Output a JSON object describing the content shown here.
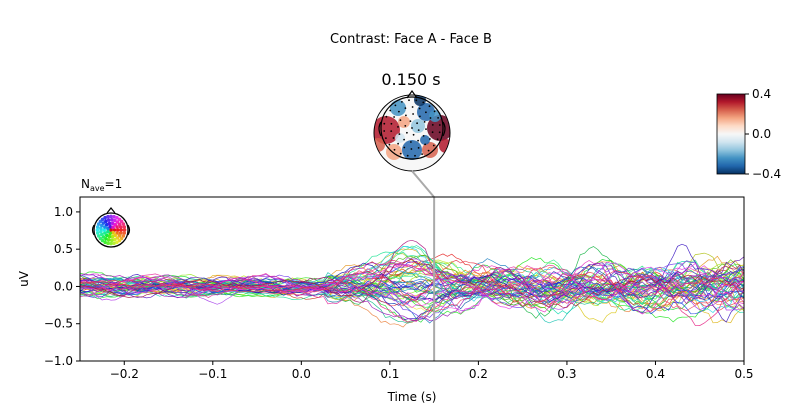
{
  "figure": {
    "suptitle": "Contrast: Face A - Face B",
    "topomap_time_label": "0.150 s",
    "nave_label": "N",
    "nave_sub": "ave",
    "nave_value": "=1"
  },
  "chart_data": {
    "type": "line",
    "title": "Contrast: Face A - Face B",
    "xlabel": "Time (s)",
    "ylabel": "uV",
    "xlim": [
      -0.25,
      0.5
    ],
    "ylim": [
      -1.0,
      1.2
    ],
    "x_ticks": [
      -0.2,
      -0.1,
      0.0,
      0.1,
      0.2,
      0.3,
      0.4,
      0.5
    ],
    "x_tick_labels": [
      "−0.2",
      "−0.1",
      "0.0",
      "0.1",
      "0.2",
      "0.3",
      "0.4",
      "0.5"
    ],
    "y_ticks": [
      -1.0,
      -0.5,
      0.0,
      0.5,
      1.0
    ],
    "y_tick_labels": [
      "−1.0",
      "−0.5",
      "0.0",
      "0.5",
      "1.0"
    ],
    "grid": false,
    "marker_time": 0.15,
    "n_channels": 60,
    "sample_step": 0.005,
    "sensor_legend": "top-left",
    "colors": {
      "marker_line": "#aaaaaa",
      "axis": "#000000"
    }
  },
  "colorbar": {
    "vmin": -0.4,
    "vmax": 0.4,
    "ticks": [
      0.4,
      0.0,
      -0.4
    ],
    "tick_labels": [
      "0.4",
      "0.0",
      "−0.4"
    ],
    "colors": [
      "#67001f",
      "#b2182b",
      "#d6604d",
      "#f4a582",
      "#fddbc7",
      "#f7f7f7",
      "#d1e5f0",
      "#92c5de",
      "#4393c3",
      "#2166ac",
      "#053061"
    ]
  }
}
